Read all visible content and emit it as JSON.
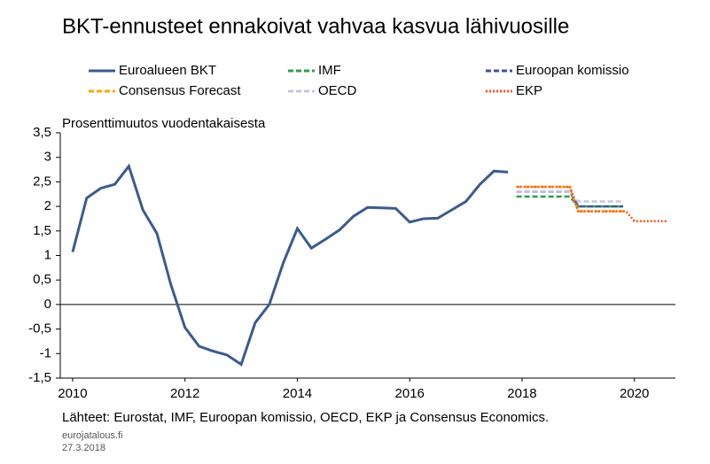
{
  "chart_data": {
    "type": "line",
    "title": "BKT-ennusteet ennakoivat vahvaa kasvua lähivuosille",
    "subtitle": "Prosenttimuutos vuodentakaisesta",
    "xlim": [
      2009.78,
      2020.73
    ],
    "xticks": [
      2010,
      2012,
      2014,
      2016,
      2018,
      2020
    ],
    "ylim": [
      -1.5,
      3.5
    ],
    "yticks": [
      {
        "value": 3.5,
        "label": "3,5"
      },
      3,
      {
        "value": 2.5,
        "label": "2,5"
      },
      2,
      {
        "value": 1.5,
        "label": "1,5"
      },
      1,
      {
        "value": 0.5,
        "label": "0,5"
      },
      0,
      {
        "value": -0.5,
        "label": "-0,5"
      },
      -1,
      {
        "value": -1.5,
        "label": "-1,5"
      }
    ],
    "series": [
      {
        "name": "Euroalueen BKT",
        "color": "#3b5b8f",
        "dash": "solid",
        "x": [
          2010,
          2010.25,
          2010.5,
          2010.75,
          2011,
          2011.25,
          2011.5,
          2011.75,
          2012,
          2012.25,
          2012.5,
          2012.75,
          2013,
          2013.25,
          2013.5,
          2013.75,
          2014,
          2014.25,
          2014.5,
          2014.75,
          2015,
          2015.25,
          2015.5,
          2015.75,
          2016,
          2016.25,
          2016.5,
          2016.75,
          2017,
          2017.25,
          2017.5,
          2017.75
        ],
        "values": [
          1.07,
          2.17,
          2.37,
          2.45,
          2.82,
          1.93,
          1.45,
          0.4,
          -0.47,
          -0.85,
          -0.95,
          -1.03,
          -1.22,
          -0.37,
          0.0,
          0.85,
          1.55,
          1.15,
          1.33,
          1.52,
          1.8,
          1.98,
          1.97,
          1.96,
          1.68,
          1.75,
          1.76,
          1.93,
          2.1,
          2.45,
          2.72,
          2.7
        ]
      },
      {
        "name": "IMF",
        "color": "#2e9e4f",
        "dash": "dashed",
        "x": [
          2017.9,
          2018.85,
          2019.0,
          2019.8
        ],
        "values": [
          2.2,
          2.2,
          2.0,
          2.0
        ]
      },
      {
        "name": "Euroopan komissio",
        "color": "#4050a0",
        "dash": "dashed",
        "x": [
          2017.9,
          2018.85,
          2019.0,
          2019.8
        ],
        "values": [
          2.3,
          2.3,
          2.0,
          2.0
        ]
      },
      {
        "name": "Consensus Forecast",
        "color": "#ffa500",
        "dash": "dashed",
        "x": [
          2017.9,
          2018.85,
          2019.0,
          2019.8
        ],
        "values": [
          2.4,
          2.4,
          1.9,
          1.9
        ]
      },
      {
        "name": "OECD",
        "color": "#c4c4e4",
        "dash": "dashed",
        "x": [
          2017.9,
          2018.85,
          2019.0,
          2019.8
        ],
        "values": [
          2.3,
          2.3,
          2.1,
          2.1
        ]
      },
      {
        "name": "EKP",
        "color": "#ff5522",
        "dash": "dotted",
        "x": [
          2017.9,
          2018.85,
          2019.0,
          2019.85,
          2020.0,
          2020.6
        ],
        "values": [
          2.4,
          2.4,
          1.9,
          1.9,
          1.7,
          1.7
        ]
      }
    ],
    "source": "Lähteet: Eurostat, IMF, Euroopan komissio, OECD, EKP ja Consensus Economics.",
    "site": "eurojatalous.fi",
    "date": "27.3.2018"
  }
}
